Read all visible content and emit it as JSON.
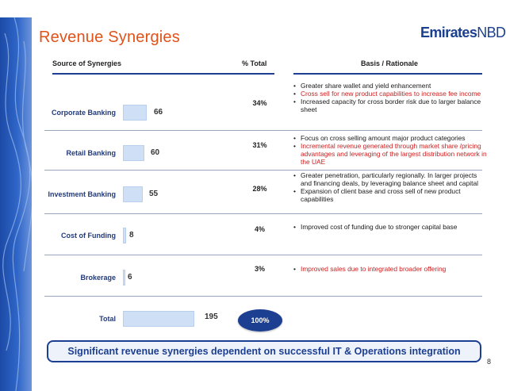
{
  "slide": {
    "title": "Revenue Synergies",
    "logo_text_bold": "Emirates",
    "logo_text": "NBD",
    "page_number": "8"
  },
  "headers": {
    "source": "Source of Synergies",
    "pct": "% Total",
    "basis": "Basis / Rationale"
  },
  "rows": [
    {
      "label": "Corporate Banking",
      "value": "66",
      "pct": "34%",
      "rationale": [
        {
          "text": "Greater share wallet and yield enhancement",
          "color": "#1a1a1a"
        },
        {
          "text": "Cross sell for new product capabilities to increase fee income",
          "color": "#cc1f1f"
        },
        {
          "text": "Increased capacity for cross border risk due to larger balance sheet",
          "color": "#1a1a1a"
        }
      ]
    },
    {
      "label": "Retail Banking",
      "value": "60",
      "pct": "31%",
      "rationale": [
        {
          "text": "Focus on cross selling amount major product categories",
          "color": "#1a1a1a"
        },
        {
          "text": "Incremental revenue generated through market share /pricing advantages and leveraging of the largest distribution network in the UAE",
          "color": "#cc1f1f"
        }
      ]
    },
    {
      "label": "Investment Banking",
      "value": "55",
      "pct": "28%",
      "rationale": [
        {
          "text": "Greater penetration, particularly regionally. In larger projects and financing deals, by leveraging balance sheet and capital",
          "color": "#1a1a1a"
        },
        {
          "text": "Expansion of client base and cross sell of new product capabilities",
          "color": "#1a1a1a"
        }
      ]
    },
    {
      "label": "Cost of Funding",
      "value": "8",
      "pct": "4%",
      "rationale": [
        {
          "text": "Improved cost of funding due to stronger capital base",
          "color": "#1a1a1a"
        }
      ]
    },
    {
      "label": "Brokerage",
      "value": "6",
      "pct": "3%",
      "rationale": [
        {
          "text": "Improved sales due to integrated broader offering",
          "color": "#cc1f1f"
        }
      ]
    }
  ],
  "total": {
    "label": "Total",
    "value": "195",
    "pct": "100%"
  },
  "banner": "Significant revenue synergies dependent on successful IT & Operations integration",
  "colors": {
    "title": "#e0521a",
    "navy": "#1d3f91",
    "bar": "#cfe0f6",
    "highlight_red": "#cc1f1f"
  }
}
